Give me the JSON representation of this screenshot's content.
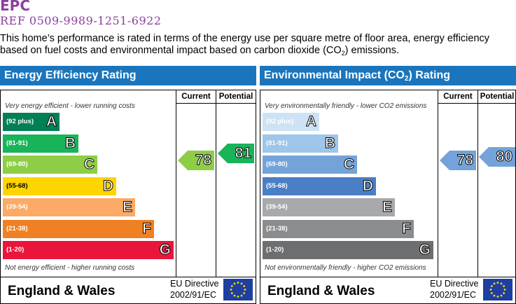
{
  "header": {
    "title": "EPC",
    "ref": "REF 0509-9989-1251-6922",
    "intro_part1": "This home’s performance is rated in terms of the energy use per square metre of floor area, energy efficiency based on fuel costs and environmental impact based on carbon dioxide (CO",
    "intro_sub": "2",
    "intro_part2": ") emissions."
  },
  "energy": {
    "title": "Energy Efficiency Rating",
    "col_current": "Current",
    "col_potential": "Potential",
    "top_note": "Very energy efficient - lower running costs",
    "bottom_note": "Not energy efficient - higher running costs",
    "bands": [
      {
        "range": "(92 plus)",
        "letter": "A",
        "color": "#008054"
      },
      {
        "range": "(81-91)",
        "letter": "B",
        "color": "#19b459"
      },
      {
        "range": "(69-80)",
        "letter": "C",
        "color": "#8dce46"
      },
      {
        "range": "(55-68)",
        "letter": "D",
        "color": "#ffd500"
      },
      {
        "range": "(39-54)",
        "letter": "E",
        "color": "#fcaa65"
      },
      {
        "range": "(21-38)",
        "letter": "F",
        "color": "#ef8023"
      },
      {
        "range": "(1-20)",
        "letter": "G",
        "color": "#e9153b"
      }
    ],
    "current": {
      "value": "78",
      "color": "#8dce46"
    },
    "potential": {
      "value": "81",
      "color": "#19b459"
    },
    "footer_country": "England & Wales",
    "footer_directive_1": "EU Directive",
    "footer_directive_2": "2002/91/EC"
  },
  "environment": {
    "title_part1": "Environmental Impact (CO",
    "title_sub": "2",
    "title_part2": ") Rating",
    "col_current": "Current",
    "col_potential": "Potential",
    "top_note": "Very environmentally friendly - lower CO2 emissions",
    "bottom_note": "Not environmentally friendly - higher CO2 emissions",
    "bands": [
      {
        "range": "(92 plus)",
        "letter": "A",
        "color": "#cde3f5"
      },
      {
        "range": "(81-91)",
        "letter": "B",
        "color": "#9ec5ea"
      },
      {
        "range": "(69-80)",
        "letter": "C",
        "color": "#73a3d9"
      },
      {
        "range": "(55-68)",
        "letter": "D",
        "color": "#4a7fc4"
      },
      {
        "range": "(39-54)",
        "letter": "E",
        "color": "#a7a9ac"
      },
      {
        "range": "(21-38)",
        "letter": "F",
        "color": "#8a8c8e"
      },
      {
        "range": "(1-20)",
        "letter": "G",
        "color": "#6d6e70"
      }
    ],
    "current": {
      "value": "78",
      "color": "#73a3d9"
    },
    "potential": {
      "value": "80",
      "color": "#73a3d9"
    },
    "footer_country": "England & Wales",
    "footer_directive_1": "EU Directive",
    "footer_directive_2": "2002/91/EC"
  }
}
